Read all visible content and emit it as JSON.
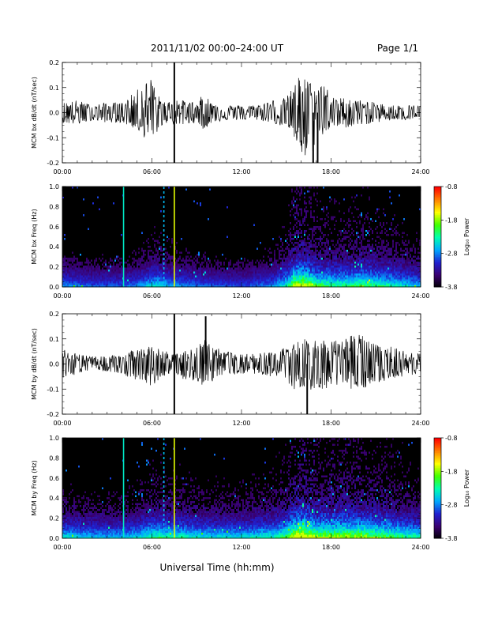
{
  "header": {
    "title": "2011/11/02  00:00–24:00 UT",
    "page": "Page 1/1"
  },
  "footer": {
    "xlabel": "Universal Time (hh:mm)"
  },
  "colorbar": {
    "label": "Log₁₀ Power",
    "ticks": [
      "-0.8",
      "-1.8",
      "-2.8",
      "-3.8"
    ],
    "tick_values": [
      -0.8,
      -1.8,
      -2.8,
      -3.8
    ],
    "range": [
      -3.8,
      -0.8
    ],
    "colormap": [
      "#000000",
      "#3a0070",
      "#2020d0",
      "#00a8ff",
      "#00ffb0",
      "#40ff00",
      "#ffff00",
      "#ff8000",
      "#ff0000"
    ]
  },
  "time_ticks": [
    "00:00",
    "06:00",
    "12:00",
    "18:00",
    "24:00"
  ],
  "chart_data": [
    {
      "type": "line",
      "ylabel": "MCM bx dB/dt (nT/sec)",
      "xlim": [
        0,
        24
      ],
      "ylim": [
        -0.2,
        0.2
      ],
      "y_ticks": [
        "0.2",
        "0.1",
        "0.0",
        "-0.1",
        "-0.2"
      ],
      "y_tick_values": [
        0.2,
        0.1,
        0.0,
        -0.1,
        -0.2
      ],
      "x_unit": "hours UT",
      "envelope": {
        "hours": [
          0,
          1,
          2,
          3,
          4,
          5,
          5.5,
          6,
          6.5,
          7,
          7.5,
          8,
          9,
          9.5,
          10,
          11,
          12,
          13,
          14,
          15,
          15.5,
          16,
          16.5,
          17,
          17.5,
          18,
          19,
          20,
          21,
          22,
          23,
          24
        ],
        "upper": [
          0.04,
          0.05,
          0.03,
          0.04,
          0.04,
          0.09,
          0.12,
          0.14,
          0.06,
          0.04,
          0.06,
          0.05,
          0.04,
          0.08,
          0.04,
          0.03,
          0.03,
          0.03,
          0.05,
          0.06,
          0.11,
          0.16,
          0.13,
          0.09,
          0.14,
          0.06,
          0.06,
          0.05,
          0.04,
          0.03,
          0.03,
          0.03
        ],
        "lower": [
          -0.04,
          -0.05,
          -0.03,
          -0.04,
          -0.04,
          -0.07,
          -0.1,
          -0.12,
          -0.06,
          -0.04,
          -0.05,
          -0.05,
          -0.04,
          -0.07,
          -0.04,
          -0.03,
          -0.03,
          -0.03,
          -0.04,
          -0.06,
          -0.1,
          -0.18,
          -0.2,
          -0.12,
          -0.09,
          -0.06,
          -0.06,
          -0.05,
          -0.04,
          -0.03,
          -0.03,
          -0.03
        ]
      },
      "spikes": [
        {
          "hour": 7.5,
          "value": 0.2
        },
        {
          "hour": 7.5,
          "value": -0.2
        },
        {
          "hour": 16.8,
          "value": -0.2
        },
        {
          "hour": 17.1,
          "value": -0.2
        }
      ]
    },
    {
      "type": "heatmap",
      "ylabel": "MCM bx Freq (Hz)",
      "xlim": [
        0,
        24
      ],
      "ylim": [
        0,
        1.0
      ],
      "y_ticks": [
        "1.0",
        "0.8",
        "0.6",
        "0.4",
        "0.2",
        "0.0"
      ],
      "y_tick_values": [
        1.0,
        0.8,
        0.6,
        0.4,
        0.2,
        0.0
      ],
      "z_range": [
        -3.8,
        -0.8
      ],
      "activity_hours": [
        0,
        2,
        4,
        5,
        6,
        6.5,
        7,
        8,
        10,
        12,
        14,
        15,
        15.5,
        16,
        16.5,
        17,
        18,
        19,
        20,
        21,
        22,
        23,
        24
      ],
      "activity_level": [
        0.35,
        0.3,
        0.3,
        0.35,
        0.45,
        0.45,
        0.4,
        0.35,
        0.3,
        0.28,
        0.35,
        0.5,
        0.75,
        0.8,
        0.7,
        0.6,
        0.55,
        0.55,
        0.6,
        0.55,
        0.5,
        0.45,
        0.4
      ],
      "vertical_lines": [
        {
          "hour": 4.1,
          "log_power": -2.4
        },
        {
          "hour": 6.8,
          "log_power": -2.6
        },
        {
          "hour": 7.5,
          "log_power": -1.6
        }
      ]
    },
    {
      "type": "line",
      "ylabel": "MCM by dB/dt (nT/sec)",
      "xlim": [
        0,
        24
      ],
      "ylim": [
        -0.2,
        0.2
      ],
      "y_ticks": [
        "0.2",
        "0.1",
        "0.0",
        "-0.1",
        "-0.2"
      ],
      "y_tick_values": [
        0.2,
        0.1,
        0.0,
        -0.1,
        -0.2
      ],
      "x_unit": "hours UT",
      "envelope": {
        "hours": [
          0,
          1,
          2,
          3,
          4,
          5,
          5.5,
          6,
          6.5,
          7,
          7.5,
          8,
          9,
          9.5,
          10,
          11,
          12,
          13,
          14,
          15,
          15.5,
          16,
          16.5,
          17,
          17.5,
          18,
          19,
          20,
          21,
          22,
          23,
          24
        ],
        "upper": [
          0.06,
          0.04,
          0.03,
          0.03,
          0.04,
          0.06,
          0.07,
          0.08,
          0.06,
          0.05,
          0.05,
          0.06,
          0.07,
          0.1,
          0.07,
          0.05,
          0.04,
          0.04,
          0.05,
          0.07,
          0.08,
          0.1,
          0.11,
          0.1,
          0.11,
          0.09,
          0.11,
          0.12,
          0.09,
          0.07,
          0.05,
          0.04
        ],
        "lower": [
          -0.06,
          -0.04,
          -0.03,
          -0.03,
          -0.04,
          -0.07,
          -0.09,
          -0.1,
          -0.06,
          -0.05,
          -0.05,
          -0.06,
          -0.07,
          -0.09,
          -0.07,
          -0.05,
          -0.04,
          -0.04,
          -0.05,
          -0.07,
          -0.1,
          -0.1,
          -0.11,
          -0.1,
          -0.1,
          -0.09,
          -0.1,
          -0.1,
          -0.08,
          -0.06,
          -0.05,
          -0.04
        ]
      },
      "spikes": [
        {
          "hour": 7.5,
          "value": 0.2
        },
        {
          "hour": 7.5,
          "value": -0.2
        },
        {
          "hour": 9.6,
          "value": 0.19
        },
        {
          "hour": 16.4,
          "value": -0.2
        }
      ]
    },
    {
      "type": "heatmap",
      "ylabel": "MCM by Freq (Hz)",
      "xlim": [
        0,
        24
      ],
      "ylim": [
        0,
        1.0
      ],
      "y_ticks": [
        "1.0",
        "0.8",
        "0.6",
        "0.4",
        "0.2",
        "0.0"
      ],
      "y_tick_values": [
        1.0,
        0.8,
        0.6,
        0.4,
        0.2,
        0.0
      ],
      "z_range": [
        -3.8,
        -0.8
      ],
      "activity_hours": [
        0,
        2,
        4,
        5,
        6,
        6.5,
        7,
        8,
        10,
        12,
        14,
        15,
        15.5,
        16,
        16.5,
        17,
        18,
        19,
        20,
        21,
        22,
        23,
        24
      ],
      "activity_level": [
        0.45,
        0.4,
        0.4,
        0.45,
        0.55,
        0.55,
        0.5,
        0.5,
        0.45,
        0.45,
        0.5,
        0.6,
        0.8,
        0.85,
        0.8,
        0.7,
        0.7,
        0.7,
        0.7,
        0.65,
        0.6,
        0.55,
        0.5
      ],
      "vertical_lines": [
        {
          "hour": 4.1,
          "log_power": -2.4
        },
        {
          "hour": 6.8,
          "log_power": -2.6
        },
        {
          "hour": 7.5,
          "log_power": -1.6
        }
      ]
    }
  ]
}
